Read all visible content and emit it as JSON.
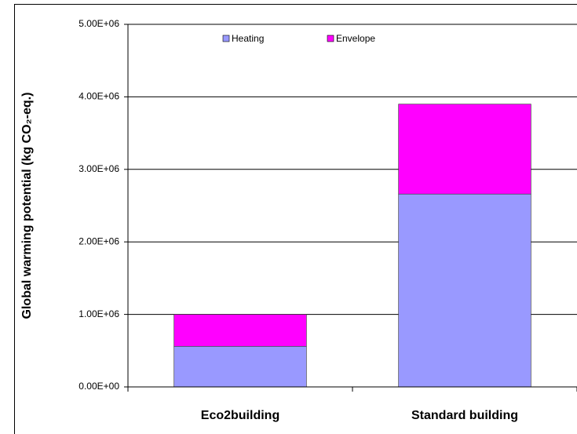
{
  "chart_data": {
    "type": "stacked_bar",
    "ylabel": "Global warming potential (kg CO₂-eq.)",
    "categories": [
      "Eco2building",
      "Standard building"
    ],
    "series": [
      {
        "name": "Heating",
        "color": "#9999ff",
        "values": [
          560000,
          2660000
        ]
      },
      {
        "name": "Envelope",
        "color": "#ff00ff",
        "values": [
          440000,
          1240000
        ]
      }
    ],
    "ylim": [
      0,
      5000000
    ],
    "yticks": [
      {
        "value": 0,
        "label": "0.00E+00"
      },
      {
        "value": 1000000,
        "label": "1.00E+06"
      },
      {
        "value": 2000000,
        "label": "2.00E+06"
      },
      {
        "value": 3000000,
        "label": "3.00E+06"
      },
      {
        "value": 4000000,
        "label": "4.00E+06"
      },
      {
        "value": 5000000,
        "label": "5.00E+06"
      }
    ],
    "grid": true,
    "legend": "top"
  }
}
